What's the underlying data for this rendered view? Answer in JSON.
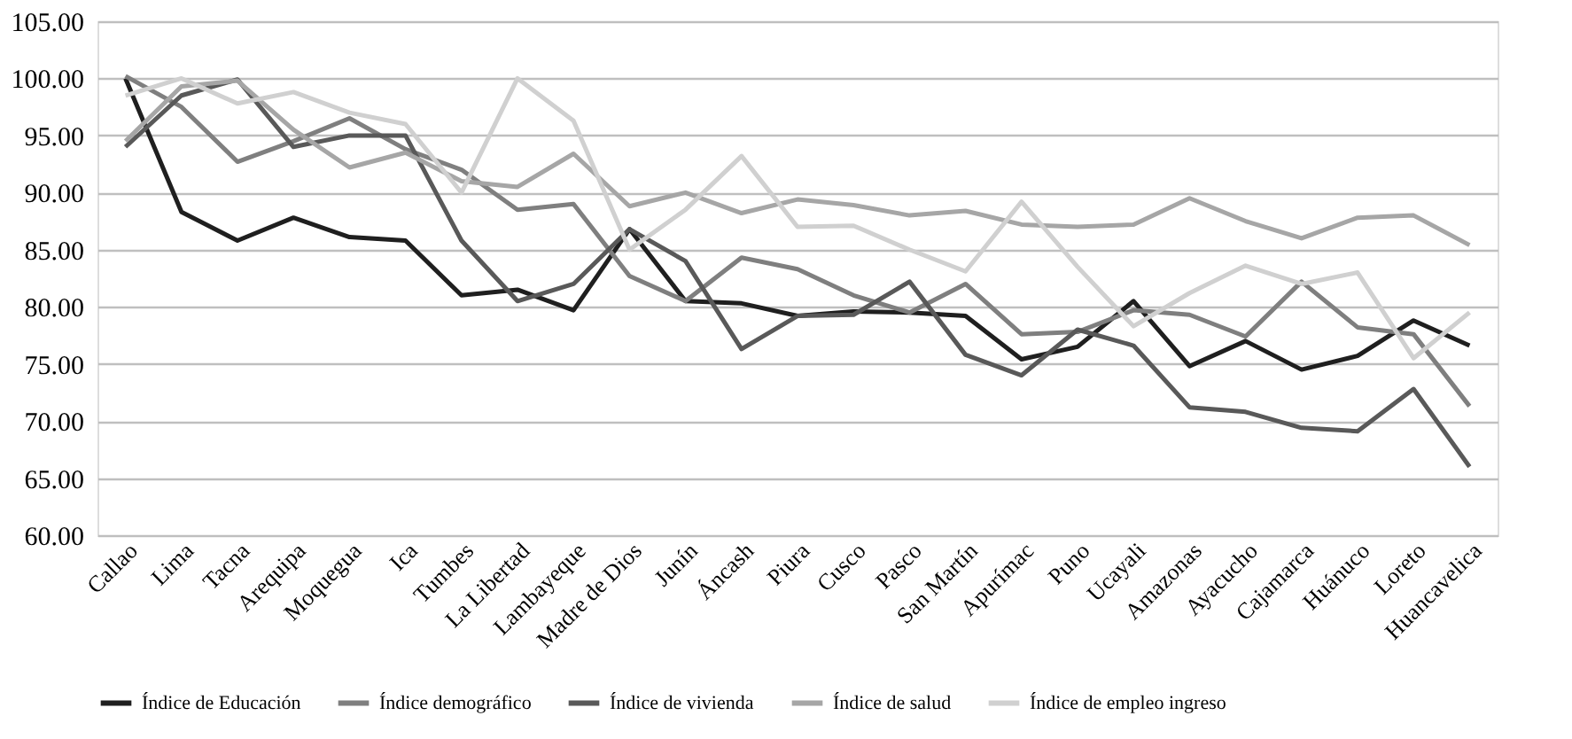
{
  "chart_data": {
    "type": "line",
    "categories": [
      "Callao",
      "Lima",
      "Tacna",
      "Arequipa",
      "Moquegua",
      "Ica",
      "Tumbes",
      "La Libertad",
      "Lambayeque",
      "Madre de Dios",
      "Junín",
      "Áncash",
      "Piura",
      "Cusco",
      "Pasco",
      "San Martín",
      "Apurímac",
      "Puno",
      "Ucayali",
      "Amazonas",
      "Ayacucho",
      "Cajamarca",
      "Huánuco",
      "Loreto",
      "Huancavelica"
    ],
    "series": [
      {
        "name": "Índice de Educación",
        "color": "#1f1f1f",
        "values": [
          100.0,
          88.3,
          85.8,
          87.8,
          86.1,
          85.8,
          81.0,
          81.5,
          79.7,
          86.8,
          80.5,
          80.3,
          79.2,
          79.6,
          79.5,
          79.2,
          75.4,
          76.5,
          80.5,
          74.8,
          77.0,
          74.5,
          75.7,
          78.8,
          76.6
        ]
      },
      {
        "name": "Índice demográfico",
        "color": "#7f7f7f",
        "values": [
          100.2,
          97.5,
          92.7,
          94.5,
          96.5,
          93.8,
          92.0,
          88.5,
          89.0,
          82.7,
          80.5,
          84.3,
          83.3,
          81.0,
          79.5,
          82.0,
          77.6,
          77.8,
          79.7,
          79.3,
          77.4,
          82.2,
          78.2,
          77.6,
          71.3
        ]
      },
      {
        "name": "Índice de vivienda",
        "color": "#595959",
        "values": [
          94.0,
          98.5,
          99.9,
          94.0,
          95.0,
          95.0,
          85.8,
          80.5,
          82.0,
          86.8,
          84.0,
          76.3,
          79.2,
          79.3,
          82.2,
          75.8,
          74.0,
          78.0,
          76.6,
          71.2,
          70.8,
          69.4,
          69.1,
          72.8,
          66.0
        ]
      },
      {
        "name": "Índice de salud",
        "color": "#a6a6a6",
        "values": [
          94.5,
          99.3,
          99.8,
          95.5,
          92.2,
          93.5,
          91.0,
          90.5,
          93.4,
          88.8,
          90.0,
          88.2,
          89.4,
          88.9,
          88.0,
          88.4,
          87.2,
          87.0,
          87.2,
          89.5,
          87.5,
          86.0,
          87.8,
          88.0,
          85.4
        ]
      },
      {
        "name": "Índice de empleo ingreso",
        "color": "#d0d0d0",
        "values": [
          98.5,
          100.0,
          97.8,
          98.8,
          97.0,
          96.0,
          90.0,
          100.0,
          96.3,
          85.0,
          88.5,
          93.2,
          87.0,
          87.1,
          85.0,
          83.1,
          89.2,
          83.5,
          78.3,
          81.2,
          83.6,
          82.0,
          83.0,
          75.5,
          79.5
        ]
      }
    ],
    "ylim": [
      60,
      105
    ],
    "yticks": [
      {
        "value": 60,
        "label": "60.00"
      },
      {
        "value": 65,
        "label": "65.00"
      },
      {
        "value": 70,
        "label": "70.00"
      },
      {
        "value": 75,
        "label": "75.00"
      },
      {
        "value": 80,
        "label": "80.00"
      },
      {
        "value": 85,
        "label": "85.00"
      },
      {
        "value": 90,
        "label": "90.00"
      },
      {
        "value": 95,
        "label": "95.00"
      },
      {
        "value": 100,
        "label": "100.00"
      },
      {
        "value": 105,
        "label": "105.00"
      }
    ],
    "grid": "y",
    "legend": "bottom",
    "marker": "none",
    "line_style": "solid"
  }
}
